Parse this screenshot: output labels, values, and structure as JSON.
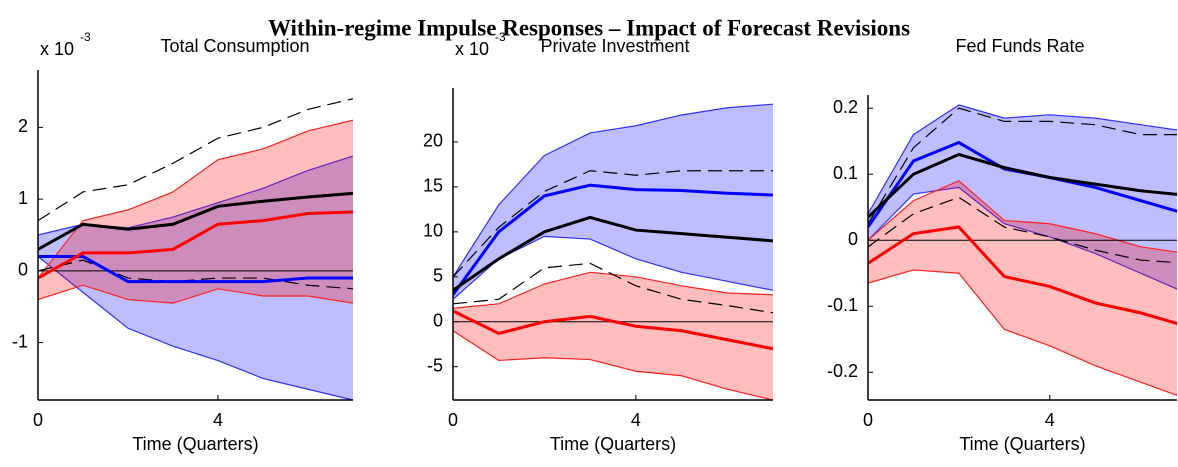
{
  "title": "Within-regime Impulse Responses – Impact of Forecast Revisions",
  "chart_data": [
    {
      "type": "line",
      "title": "Total Consumption",
      "y_scale_label": {
        "base": "x 10",
        "exponent": "-3"
      },
      "xlabel": "Time (Quarters)",
      "x": [
        0,
        1,
        2,
        3,
        4,
        5,
        6,
        7
      ],
      "xlim": [
        0,
        7
      ],
      "xticks": [
        0,
        4
      ],
      "ylim": [
        -1.8,
        2.8
      ],
      "yticks": [
        -1,
        0,
        1,
        2
      ],
      "reference_lines": [
        0
      ],
      "bands": [
        {
          "color": "#0000ff",
          "edge_color": "#3030ff",
          "upper": [
            0.5,
            0.65,
            0.6,
            0.75,
            0.95,
            1.15,
            1.4,
            1.6
          ],
          "lower": [
            0.2,
            -0.3,
            -0.8,
            -1.05,
            -1.25,
            -1.5,
            -1.65,
            -1.8
          ]
        },
        {
          "color": "#ff0000",
          "edge_color": "#ff2020",
          "upper": [
            -0.1,
            0.7,
            0.85,
            1.1,
            1.55,
            1.7,
            1.95,
            2.1
          ],
          "lower": [
            -0.4,
            -0.2,
            -0.4,
            -0.45,
            -0.25,
            -0.35,
            -0.35,
            -0.45
          ]
        }
      ],
      "series": [
        {
          "color": "#000000",
          "style": "dashed",
          "values": [
            0.7,
            1.1,
            1.2,
            1.5,
            1.85,
            2.0,
            2.25,
            2.4
          ]
        },
        {
          "color": "#000000",
          "style": "dashed",
          "values": [
            0.0,
            0.15,
            -0.1,
            -0.15,
            -0.1,
            -0.1,
            -0.2,
            -0.25
          ]
        },
        {
          "color": "#0000ff",
          "style": "solid",
          "values": [
            0.2,
            0.2,
            -0.15,
            -0.15,
            -0.15,
            -0.15,
            -0.1,
            -0.1
          ]
        },
        {
          "color": "#ff0000",
          "style": "solid",
          "values": [
            -0.1,
            0.25,
            0.25,
            0.3,
            0.65,
            0.7,
            0.8,
            0.82
          ]
        },
        {
          "color": "#000000",
          "style": "solid",
          "values": [
            0.3,
            0.65,
            0.58,
            0.65,
            0.9,
            0.97,
            1.03,
            1.08
          ]
        }
      ]
    },
    {
      "type": "line",
      "title": "Private Investment",
      "y_scale_label": {
        "base": "x 10",
        "exponent": "-3"
      },
      "xlabel": "Time (Quarters)",
      "x": [
        0,
        1,
        2,
        3,
        4,
        5,
        6,
        7
      ],
      "xlim": [
        0,
        7
      ],
      "xticks": [
        0,
        4
      ],
      "ylim": [
        -8.7,
        26
      ],
      "yticks": [
        -5,
        0,
        5,
        10,
        15,
        20
      ],
      "reference_lines": [
        0
      ],
      "bands": [
        {
          "color": "#0000ff",
          "edge_color": "#3030ff",
          "upper": [
            5,
            13,
            18.5,
            21,
            21.8,
            23,
            23.8,
            24.2
          ],
          "lower": [
            2.5,
            7,
            9.5,
            9.2,
            7,
            5.5,
            4.5,
            3.5
          ]
        },
        {
          "color": "#ff0000",
          "edge_color": "#ff2020",
          "upper": [
            1.5,
            2,
            4.2,
            5.5,
            5,
            4,
            3.2,
            3
          ],
          "lower": [
            -1,
            -4.3,
            -4,
            -4.2,
            -5.5,
            -6,
            -7.5,
            -8.7
          ]
        }
      ],
      "series": [
        {
          "color": "#000000",
          "style": "dashed",
          "values": [
            5,
            10.5,
            14.5,
            16.8,
            16.3,
            16.8,
            16.8,
            16.8
          ]
        },
        {
          "color": "#000000",
          "style": "dashed",
          "values": [
            2,
            2.5,
            6,
            6.5,
            4,
            2.5,
            1.8,
            1
          ]
        },
        {
          "color": "#0000ff",
          "style": "solid",
          "values": [
            3,
            10,
            14,
            15.2,
            14.7,
            14.6,
            14.3,
            14.1
          ]
        },
        {
          "color": "#ff0000",
          "style": "solid",
          "values": [
            1.2,
            -1.3,
            0,
            0.6,
            -0.5,
            -1,
            -2,
            -3
          ]
        },
        {
          "color": "#000000",
          "style": "solid",
          "values": [
            3.5,
            7,
            10,
            11.6,
            10.2,
            9.8,
            9.4,
            9
          ]
        }
      ]
    },
    {
      "type": "line",
      "title": "Fed Funds Rate",
      "xlabel": "Time (Quarters)",
      "x": [
        0,
        1,
        2,
        3,
        4,
        5,
        6,
        7
      ],
      "xlim": [
        0,
        6.8
      ],
      "xticks": [
        0,
        4
      ],
      "ylim": [
        -0.242,
        0.22
      ],
      "yticks": [
        -0.2,
        -0.1,
        0,
        0.1,
        0.2
      ],
      "reference_lines": [
        0
      ],
      "bands": [
        {
          "color": "#0000ff",
          "edge_color": "#3030ff",
          "upper": [
            0.04,
            0.16,
            0.205,
            0.185,
            0.19,
            0.185,
            0.175,
            0.165
          ],
          "lower": [
            0,
            0.07,
            0.08,
            0.025,
            0.005,
            -0.02,
            -0.05,
            -0.08
          ]
        },
        {
          "color": "#ff0000",
          "edge_color": "#ff2020",
          "upper": [
            0,
            0.06,
            0.09,
            0.03,
            0.025,
            0.01,
            -0.01,
            -0.02
          ],
          "lower": [
            -0.065,
            -0.045,
            -0.05,
            -0.135,
            -0.16,
            -0.19,
            -0.215,
            -0.24
          ]
        }
      ],
      "series": [
        {
          "color": "#000000",
          "style": "dashed",
          "values": [
            0.025,
            0.14,
            0.2,
            0.18,
            0.18,
            0.175,
            0.16,
            0.16
          ]
        },
        {
          "color": "#000000",
          "style": "dashed",
          "values": [
            -0.01,
            0.04,
            0.065,
            0.02,
            0.005,
            -0.015,
            -0.03,
            -0.035
          ]
        },
        {
          "color": "#0000ff",
          "style": "solid",
          "values": [
            0.02,
            0.12,
            0.148,
            0.108,
            0.095,
            0.08,
            0.06,
            0.04
          ]
        },
        {
          "color": "#ff0000",
          "style": "solid",
          "values": [
            -0.035,
            0.01,
            0.02,
            -0.055,
            -0.07,
            -0.095,
            -0.11,
            -0.13
          ]
        },
        {
          "color": "#000000",
          "style": "solid",
          "values": [
            0.035,
            0.1,
            0.13,
            0.11,
            0.095,
            0.085,
            0.075,
            0.068
          ]
        }
      ]
    }
  ]
}
